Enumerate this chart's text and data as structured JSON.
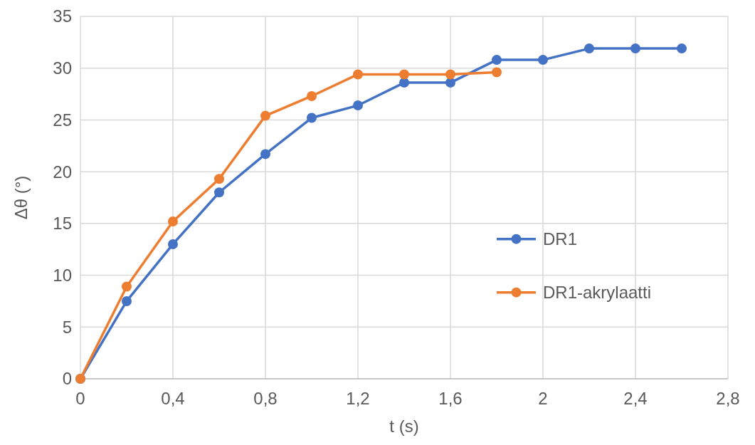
{
  "chart_data": {
    "type": "line",
    "xlabel": "t (s)",
    "ylabel": "Δθ (°)",
    "x": [
      0,
      0.2,
      0.4,
      0.6,
      0.8,
      1.0,
      1.2,
      1.4,
      1.6,
      1.8,
      2.0,
      2.2,
      2.4,
      2.6
    ],
    "series": [
      {
        "name": "DR1",
        "color": "#4472c4",
        "values": [
          0,
          7.5,
          13,
          18,
          21.7,
          25.2,
          26.4,
          28.6,
          28.6,
          30.8,
          30.8,
          31.9,
          31.9,
          31.9
        ]
      },
      {
        "name": "DR1-akrylaatti",
        "color": "#ed7d31",
        "x": [
          0,
          0.2,
          0.4,
          0.6,
          0.8,
          1.0,
          1.2,
          1.4,
          1.6,
          1.8
        ],
        "values": [
          0,
          8.9,
          15.2,
          19.3,
          25.4,
          27.3,
          29.4,
          29.4,
          29.4,
          29.6
        ]
      }
    ],
    "xlim": [
      0,
      2.8
    ],
    "xticks": [
      0,
      {
        "value": 0.4,
        "label": "0,4"
      },
      {
        "value": 0.8,
        "label": "0,8"
      },
      {
        "value": 1.2,
        "label": "1,2"
      },
      {
        "value": 1.6,
        "label": "1,6"
      },
      2,
      {
        "value": 2.4,
        "label": "2,4"
      },
      {
        "value": 2.8,
        "label": "2,8"
      }
    ],
    "ylim": [
      0,
      35
    ],
    "yticks": [
      0,
      5,
      10,
      15,
      20,
      25,
      30,
      35
    ],
    "grid": true,
    "legend": "right",
    "marker": "circle",
    "line_style": "solid"
  }
}
